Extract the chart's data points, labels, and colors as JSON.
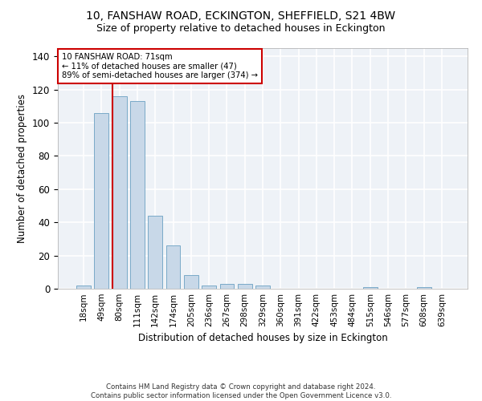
{
  "title": "10, FANSHAW ROAD, ECKINGTON, SHEFFIELD, S21 4BW",
  "subtitle": "Size of property relative to detached houses in Eckington",
  "xlabel": "Distribution of detached houses by size in Eckington",
  "ylabel": "Number of detached properties",
  "bar_color": "#c8d8e8",
  "bar_edge_color": "#7aaac8",
  "bg_color": "#eef2f7",
  "grid_color": "#ffffff",
  "annotation_box_color": "#cc0000",
  "vline_color": "#cc0000",
  "categories": [
    "18sqm",
    "49sqm",
    "80sqm",
    "111sqm",
    "142sqm",
    "174sqm",
    "205sqm",
    "236sqm",
    "267sqm",
    "298sqm",
    "329sqm",
    "360sqm",
    "391sqm",
    "422sqm",
    "453sqm",
    "484sqm",
    "515sqm",
    "546sqm",
    "577sqm",
    "608sqm",
    "639sqm"
  ],
  "values": [
    2,
    106,
    116,
    113,
    44,
    26,
    8,
    2,
    3,
    3,
    2,
    0,
    0,
    0,
    0,
    0,
    1,
    0,
    0,
    1,
    0
  ],
  "ylim": [
    0,
    145
  ],
  "yticks": [
    0,
    20,
    40,
    60,
    80,
    100,
    120,
    140
  ],
  "annotation_line1": "10 FANSHAW ROAD: 71sqm",
  "annotation_line2": "← 11% of detached houses are smaller (47)",
  "annotation_line3": "89% of semi-detached houses are larger (374) →",
  "footer1": "Contains HM Land Registry data © Crown copyright and database right 2024.",
  "footer2": "Contains public sector information licensed under the Open Government Licence v3.0."
}
